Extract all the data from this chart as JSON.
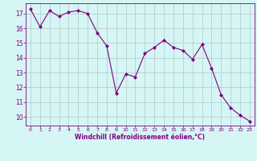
{
  "x": [
    0,
    1,
    2,
    3,
    4,
    5,
    6,
    7,
    8,
    9,
    10,
    11,
    12,
    13,
    14,
    15,
    16,
    17,
    18,
    19,
    20,
    21,
    22,
    23
  ],
  "y": [
    17.3,
    16.1,
    17.2,
    16.8,
    17.1,
    17.2,
    17.0,
    15.7,
    14.8,
    11.6,
    12.9,
    12.7,
    14.3,
    14.7,
    15.2,
    14.7,
    14.5,
    13.9,
    14.9,
    13.3,
    11.5,
    10.6,
    10.1,
    9.7
  ],
  "line_color": "#800080",
  "marker": "D",
  "marker_size": 2,
  "bg_color": "#d6f5f5",
  "grid_color": "#b0c8c8",
  "xlabel": "Windchill (Refroidissement éolien,°C)",
  "yticks": [
    10,
    11,
    12,
    13,
    14,
    15,
    16,
    17
  ],
  "xticks": [
    0,
    1,
    2,
    3,
    4,
    5,
    6,
    7,
    8,
    9,
    10,
    11,
    12,
    13,
    14,
    15,
    16,
    17,
    18,
    19,
    20,
    21,
    22,
    23
  ],
  "xlim": [
    -0.5,
    23.5
  ],
  "ylim": [
    9.4,
    17.7
  ]
}
